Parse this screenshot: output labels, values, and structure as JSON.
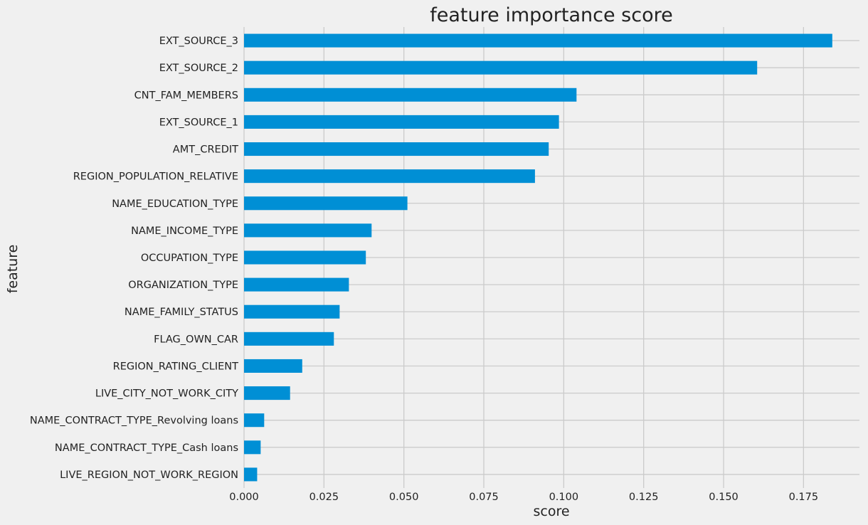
{
  "chart_data": {
    "type": "bar",
    "orientation": "horizontal",
    "title": "feature importance score",
    "xlabel": "score",
    "ylabel": "feature",
    "xlim": [
      0,
      0.1925
    ],
    "xticks": [
      "0.000",
      "0.025",
      "0.050",
      "0.075",
      "0.100",
      "0.125",
      "0.150",
      "0.175"
    ],
    "grid": true,
    "bar_color": "#008fd5",
    "background_color": "#f0f0f0",
    "categories": [
      "EXT_SOURCE_3",
      "EXT_SOURCE_2",
      "CNT_FAM_MEMBERS",
      "EXT_SOURCE_1",
      "AMT_CREDIT",
      "REGION_POPULATION_RELATIVE",
      "NAME_EDUCATION_TYPE",
      "NAME_INCOME_TYPE",
      "OCCUPATION_TYPE",
      "ORGANIZATION_TYPE",
      "NAME_FAMILY_STATUS",
      "FLAG_OWN_CAR",
      "REGION_RATING_CLIENT",
      "LIVE_CITY_NOT_WORK_CITY",
      "NAME_CONTRACT_TYPE_Revolving loans",
      "NAME_CONTRACT_TYPE_Cash loans",
      "LIVE_REGION_NOT_WORK_REGION"
    ],
    "values": [
      0.184,
      0.1605,
      0.104,
      0.0985,
      0.0953,
      0.091,
      0.0511,
      0.0399,
      0.0381,
      0.0328,
      0.0299,
      0.0281,
      0.0182,
      0.0144,
      0.0063,
      0.0052,
      0.0041
    ]
  }
}
